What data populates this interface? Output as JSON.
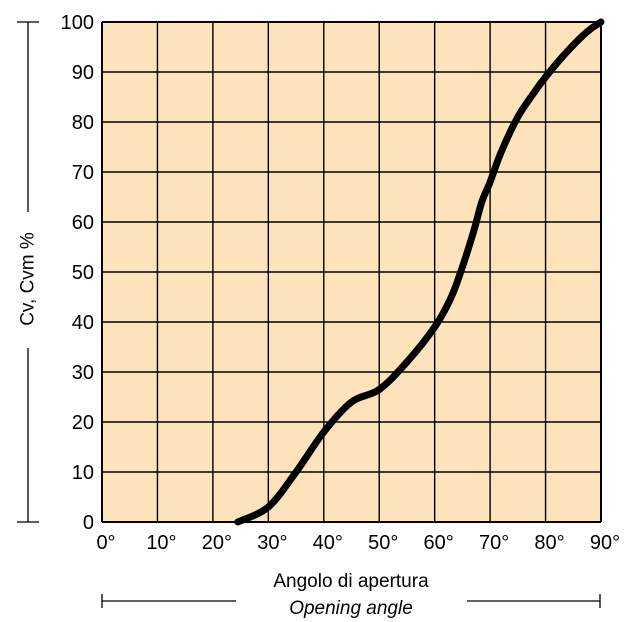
{
  "chart_data": {
    "type": "line",
    "ylabel": "Cv, Cvm %",
    "xlabel": "Angolo di apertura",
    "xlabel_sub": "Opening angle",
    "xlim": [
      0,
      90
    ],
    "ylim": [
      0,
      100
    ],
    "grid": true,
    "x_ticks": [
      0,
      10,
      20,
      30,
      40,
      50,
      60,
      70,
      80,
      90
    ],
    "x_tick_labels": [
      "0°",
      "10°",
      "20°",
      "30°",
      "40°",
      "50°",
      "60°",
      "70°",
      "80°",
      "90°"
    ],
    "y_ticks": [
      0,
      10,
      20,
      30,
      40,
      50,
      60,
      70,
      80,
      90,
      100
    ],
    "y_tick_labels": [
      "0",
      "10",
      "20",
      "30",
      "40",
      "50",
      "60",
      "70",
      "80",
      "90",
      "100"
    ],
    "series": [
      {
        "color": "#000000",
        "x": [
          24.5,
          30,
          35,
          40,
          45,
          50,
          55,
          60,
          63,
          65,
          67,
          68.5,
          70,
          72,
          75,
          78,
          80,
          83,
          86,
          88,
          90
        ],
        "y": [
          0,
          3,
          10,
          18,
          24,
          26.5,
          32,
          39,
          45,
          51,
          58,
          64,
          68,
          74,
          81,
          86,
          89,
          93,
          96.5,
          98.5,
          100
        ]
      }
    ],
    "colors": {
      "plot_background": "#FDE3BC",
      "grid": "#000000",
      "line": "#000000"
    }
  }
}
